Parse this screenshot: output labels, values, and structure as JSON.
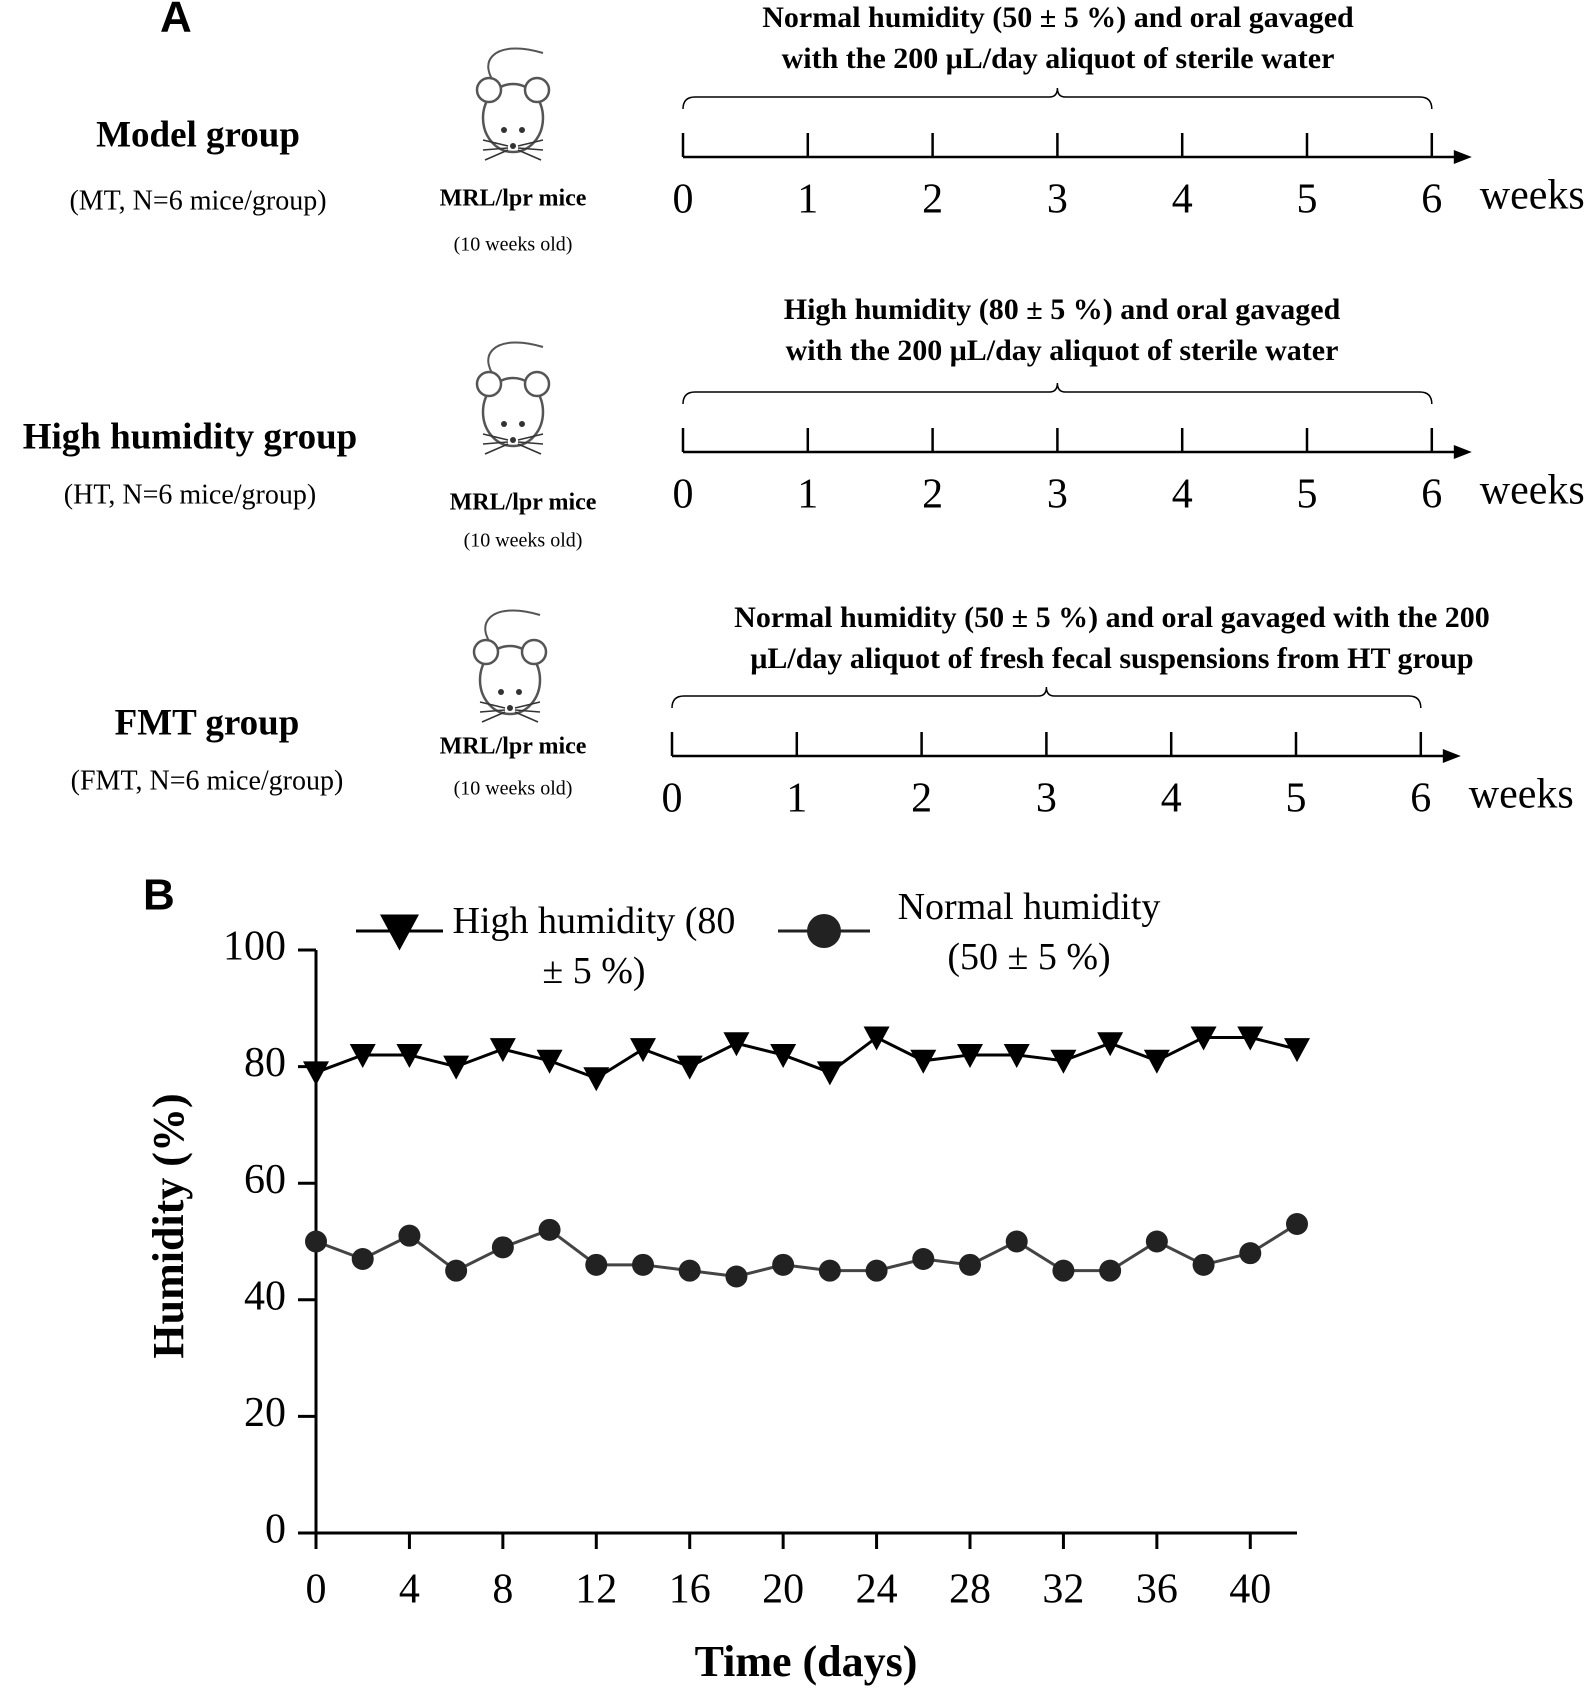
{
  "panel_a": {
    "label": "A",
    "groups": [
      {
        "name": "Model group",
        "detail": "(MT, N=6 mice/group)",
        "mouse": "MRL/lpr mice",
        "age": "(10 weeks old)",
        "treatment": [
          "Normal humidity (50 ± 5 %) and oral gavaged",
          "with the 200 μL/day aliquot of sterile water"
        ],
        "ticks": [
          0,
          1,
          2,
          3,
          4,
          5,
          6
        ],
        "unit": "weeks"
      },
      {
        "name": "High humidity group",
        "detail": "(HT, N=6 mice/group)",
        "mouse": "MRL/lpr mice",
        "age": "(10 weeks old)",
        "treatment": [
          "High humidity (80 ± 5 %) and oral gavaged",
          "with the 200 μL/day aliquot of sterile water"
        ],
        "ticks": [
          0,
          1,
          2,
          3,
          4,
          5,
          6
        ],
        "unit": "weeks"
      },
      {
        "name": "FMT group",
        "detail": "(FMT, N=6 mice/group)",
        "mouse": "MRL/lpr mice",
        "age": "(10 weeks old)",
        "treatment": [
          "Normal humidity (50 ± 5 %) and oral gavaged with the 200",
          "μL/day aliquot of fresh fecal suspensions from HT group"
        ],
        "ticks": [
          0,
          1,
          2,
          3,
          4,
          5,
          6
        ],
        "unit": "weeks"
      }
    ]
  },
  "chart_data": {
    "type": "line",
    "panel_label": "B",
    "x_label": "Time (days)",
    "y_label": "Humidity (%)",
    "x": [
      0,
      2,
      4,
      6,
      8,
      10,
      12,
      14,
      16,
      18,
      20,
      22,
      24,
      26,
      28,
      30,
      32,
      34,
      36,
      38,
      40,
      42
    ],
    "xlim": [
      0,
      42
    ],
    "xticks": [
      0,
      4,
      8,
      12,
      16,
      20,
      24,
      28,
      32,
      36,
      40
    ],
    "ylim": [
      0,
      100
    ],
    "yticks": [
      0,
      20,
      40,
      60,
      80,
      100
    ],
    "series": [
      {
        "name": "High humidity (80 ± 5 %)",
        "color": "#000000",
        "marker": "triangle-down",
        "values": [
          79,
          82,
          82,
          80,
          83,
          81,
          78,
          83,
          80,
          84,
          82,
          79,
          85,
          81,
          82,
          82,
          81,
          84,
          81,
          85,
          85,
          83
        ]
      },
      {
        "name": "Normal humidity (50 ± 5 %)",
        "color": "#222222",
        "marker": "circle",
        "values": [
          50,
          47,
          51,
          45,
          49,
          52,
          46,
          46,
          45,
          44,
          46,
          45,
          45,
          47,
          46,
          50,
          45,
          45,
          50,
          46,
          48,
          53
        ]
      }
    ]
  }
}
